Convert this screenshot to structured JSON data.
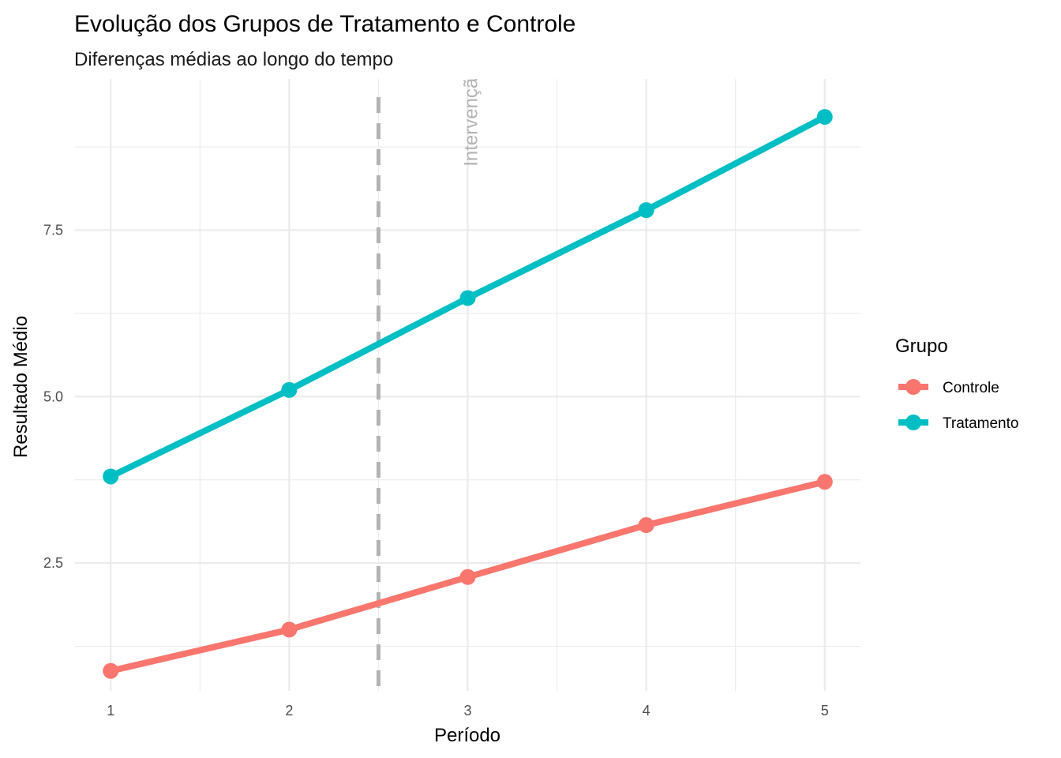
{
  "chart_data": {
    "type": "line",
    "title": "Evolução dos Grupos de Tratamento e Controle",
    "subtitle": "Diferenças médias ao longo do tempo",
    "xlabel": "Período",
    "ylabel": "Resultado Médio",
    "x": [
      1,
      2,
      3,
      4,
      5
    ],
    "x_tick_labels": [
      "1",
      "2",
      "3",
      "4",
      "5"
    ],
    "xlim": [
      0.8,
      5.2
    ],
    "ylim": [
      0.58,
      9.77
    ],
    "y_ticks": [
      2.5,
      5.0,
      7.5
    ],
    "y_tick_labels": [
      "2.5",
      "5.0",
      "7.5"
    ],
    "grid": true,
    "legend": {
      "title": "Grupo",
      "position": "right",
      "entries": [
        "Controle",
        "Tratamento"
      ]
    },
    "series": [
      {
        "name": "Controle",
        "color": "#F8766D",
        "values": [
          0.88,
          1.5,
          2.29,
          3.07,
          3.72
        ]
      },
      {
        "name": "Tratamento",
        "color": "#00BFC4",
        "values": [
          3.8,
          5.1,
          6.48,
          7.8,
          9.2
        ]
      }
    ],
    "annotations": [
      {
        "type": "vline",
        "x": 2.5,
        "style": "dashed",
        "color": "#b3b3b3"
      },
      {
        "type": "text",
        "text": "Intervenção",
        "x": 3,
        "y": 9.2,
        "rotation": 90,
        "color": "#b3b3b3"
      }
    ]
  }
}
